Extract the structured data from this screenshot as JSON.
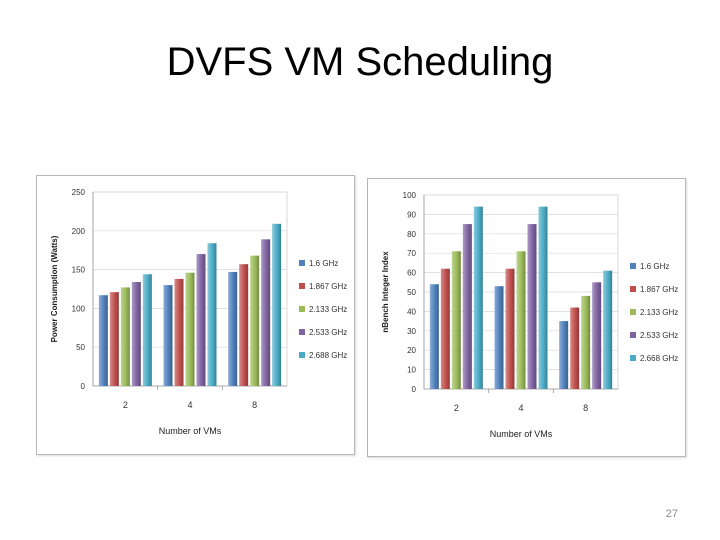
{
  "slide": {
    "title": "DVFS VM Scheduling",
    "page_number": "27"
  },
  "chart_data": [
    {
      "type": "bar",
      "categories": [
        "2",
        "4",
        "8"
      ],
      "xlabel": "Number of VMs",
      "ylabel": "Power Consumption (Watts)",
      "ylim": [
        0,
        250
      ],
      "yticks": [
        0,
        50,
        100,
        150,
        200,
        250
      ],
      "grid": true,
      "legend": "right",
      "series": [
        {
          "name": "1.6 GHz",
          "color": "#4f81bd",
          "values": [
            117,
            130,
            147
          ]
        },
        {
          "name": "1.867 GHz",
          "color": "#c0504d",
          "values": [
            121,
            138,
            157
          ]
        },
        {
          "name": "2.133 GHz",
          "color": "#9bbb59",
          "values": [
            127,
            146,
            168
          ]
        },
        {
          "name": "2.533 GHz",
          "color": "#8064a2",
          "values": [
            134,
            170,
            189
          ]
        },
        {
          "name": "2.688 GHz",
          "color": "#4bacc6",
          "values": [
            144,
            184,
            209
          ]
        }
      ]
    },
    {
      "type": "bar",
      "categories": [
        "2",
        "4",
        "8"
      ],
      "xlabel": "Number of VMs",
      "ylabel": "nBench Integer Index",
      "ylim": [
        0,
        100
      ],
      "yticks": [
        0,
        10,
        20,
        30,
        40,
        50,
        60,
        70,
        80,
        90,
        100
      ],
      "grid": true,
      "legend": "right",
      "series": [
        {
          "name": "1.6 GHz",
          "color": "#4f81bd",
          "values": [
            54,
            53,
            35
          ]
        },
        {
          "name": "1.867 GHz",
          "color": "#c0504d",
          "values": [
            62,
            62,
            42
          ]
        },
        {
          "name": "2.133 GHz",
          "color": "#9bbb59",
          "values": [
            71,
            71,
            48
          ]
        },
        {
          "name": "2.533 GHz",
          "color": "#8064a2",
          "values": [
            85,
            85,
            55
          ]
        },
        {
          "name": "2.668 GHz",
          "color": "#4bacc6",
          "values": [
            94,
            94,
            61
          ]
        }
      ]
    }
  ]
}
